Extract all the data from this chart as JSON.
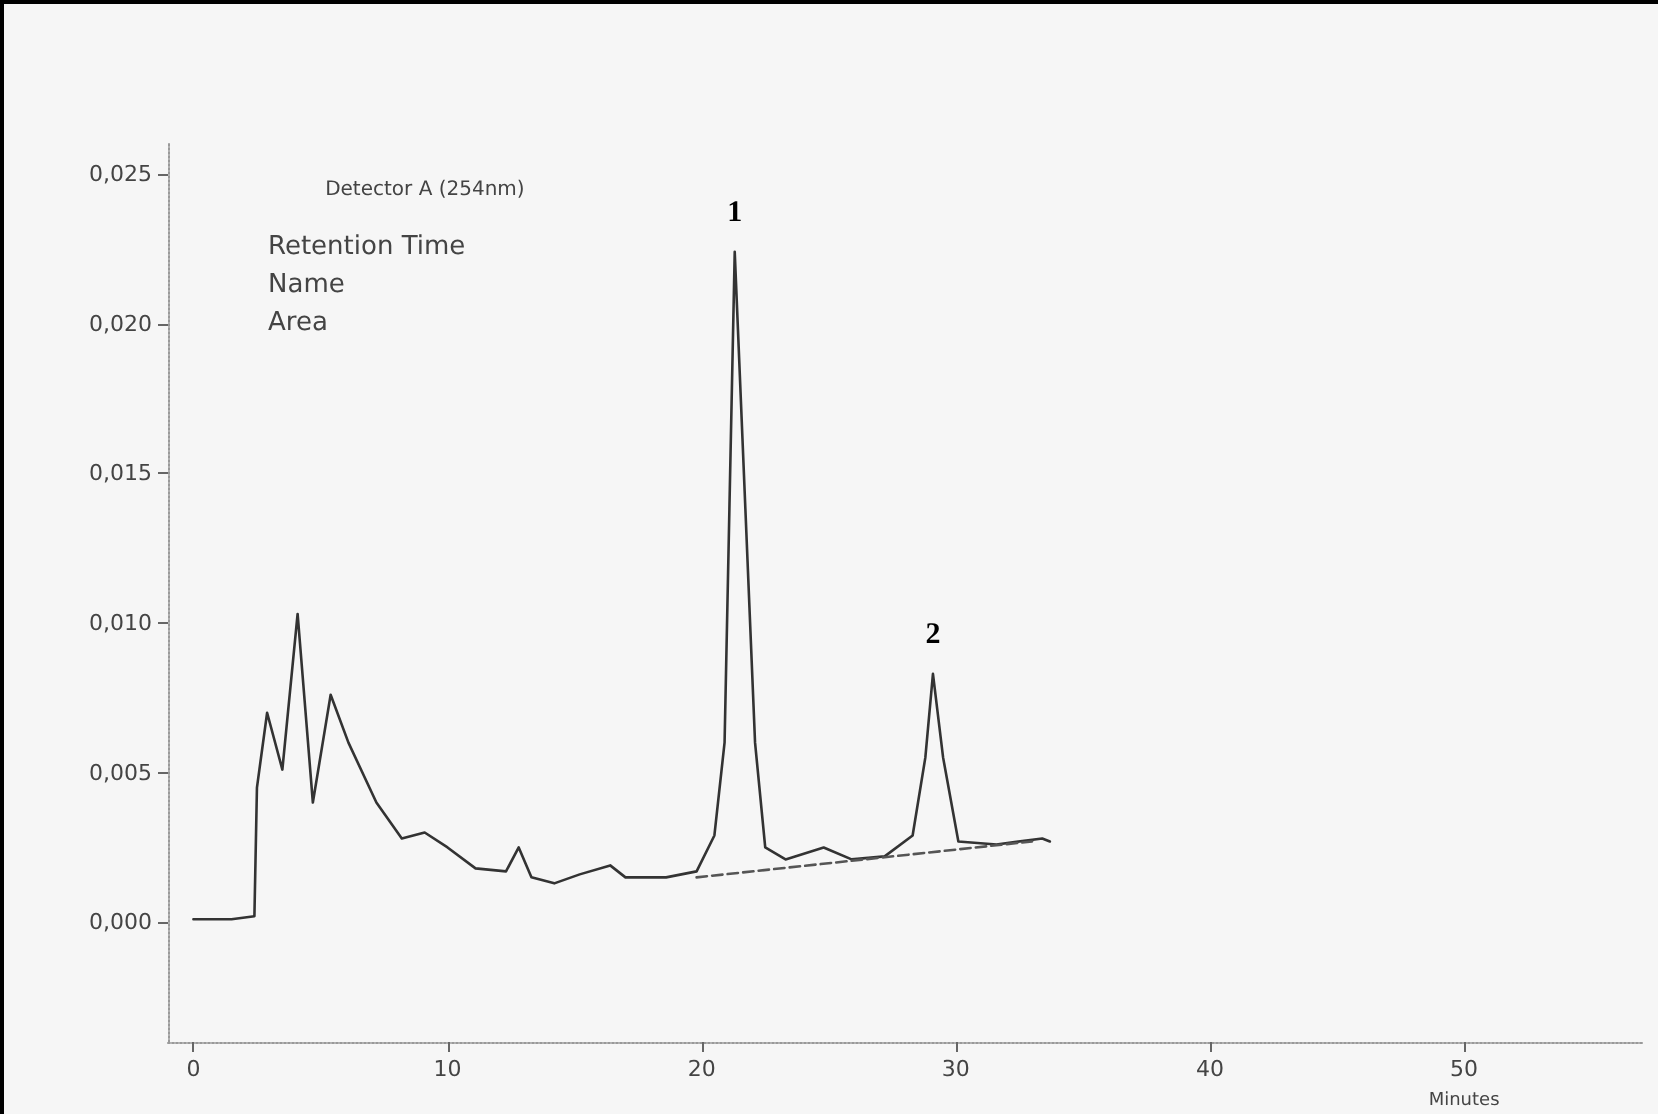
{
  "chart_data": {
    "type": "line",
    "xlabel": "Minutes",
    "xlim": [
      -1,
      57
    ],
    "xticks": [
      0,
      10,
      20,
      30,
      40,
      50
    ],
    "ylim": [
      -0.004,
      0.026
    ],
    "yticks": [
      {
        "value": 0,
        "label": "0,000"
      },
      {
        "value": 0.005,
        "label": "0,005"
      },
      {
        "value": 0.01,
        "label": "0,010"
      },
      {
        "value": 0.015,
        "label": "0,015"
      },
      {
        "value": 0.02,
        "label": "0,020"
      },
      {
        "value": 0.025,
        "label": "0,025"
      }
    ],
    "grid": false,
    "marker": "none",
    "series": [
      {
        "color": "#333333",
        "line_style": "solid",
        "x": [
          0,
          1.5,
          2.4,
          2.5,
          2.9,
          3.5,
          4.1,
          4.7,
          5.4,
          6.1,
          7.2,
          8.2,
          9.1,
          10.0,
          11.1,
          12.3,
          12.8,
          13.3,
          14.2,
          15.2,
          16.4,
          17.0,
          18.6,
          19.8,
          20.5,
          20.9,
          21.3,
          22.1,
          22.5,
          23.3,
          24.8,
          25.9,
          27.2,
          28.3,
          28.8,
          29.1,
          29.5,
          30.1,
          31.6,
          33.4,
          33.7
        ],
        "values": [
          0.0001,
          0.0001,
          0.0002,
          0.0045,
          0.007,
          0.0051,
          0.0103,
          0.004,
          0.0076,
          0.006,
          0.004,
          0.0028,
          0.003,
          0.0025,
          0.0018,
          0.0017,
          0.0025,
          0.0015,
          0.0013,
          0.0016,
          0.0019,
          0.0015,
          0.0015,
          0.0017,
          0.0029,
          0.006,
          0.0224,
          0.006,
          0.0025,
          0.0021,
          0.0025,
          0.0021,
          0.0022,
          0.0029,
          0.0055,
          0.0083,
          0.0055,
          0.0027,
          0.0026,
          0.0028,
          0.0027
        ]
      },
      {
        "color": "#555555",
        "line_style": "dashed",
        "x": [
          19.8,
          33.0
        ],
        "values": [
          0.0015,
          0.0027
        ]
      }
    ],
    "annotations": [
      "Detector A (254nm)",
      "Retention Time",
      "Name",
      "Area",
      {
        "text": "1",
        "x": 21.3,
        "y": 0.0224
      },
      {
        "text": "2",
        "x": 29.1,
        "y": 0.0083
      }
    ]
  }
}
